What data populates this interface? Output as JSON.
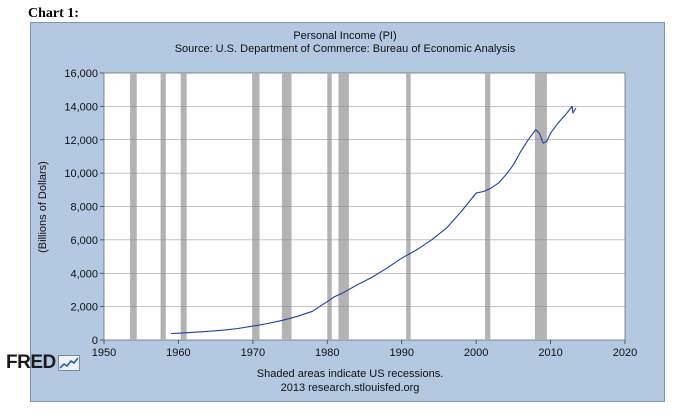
{
  "header": {
    "chart_label": "Chart 1:"
  },
  "footer": {
    "note_line1": "Shaded areas indicate US recessions.",
    "note_line2": "2013 research.stlouisfed.org",
    "logo_text": "FRED"
  },
  "colors": {
    "frame": "#b3c8e1",
    "plot": "#ffffff",
    "line": "#1f3fa3",
    "recession": "#b3b3b3"
  },
  "chart_data": {
    "type": "line",
    "title": "Personal Income (PI)",
    "subtitle": "Source: U.S. Department of Commerce: Bureau of Economic Analysis",
    "xlabel": "",
    "ylabel": "(Billions of Dollars)",
    "xlim": [
      1950,
      2020
    ],
    "ylim": [
      0,
      16000
    ],
    "x_ticks": [
      1950,
      1960,
      1970,
      1980,
      1990,
      2000,
      2010,
      2020
    ],
    "x_tick_labels": [
      "1950",
      "1960",
      "1970",
      "1980",
      "1990",
      "2000",
      "2010",
      "2020"
    ],
    "y_ticks": [
      0,
      2000,
      4000,
      6000,
      8000,
      10000,
      12000,
      14000,
      16000
    ],
    "y_tick_labels": [
      "0",
      "2,000",
      "4,000",
      "6,000",
      "8,000",
      "10,000",
      "12,000",
      "14,000",
      "16,000"
    ],
    "grid": true,
    "recessions": [
      [
        1953.5,
        1954.4
      ],
      [
        1957.6,
        1958.3
      ],
      [
        1960.3,
        1961.1
      ],
      [
        1969.9,
        1970.9
      ],
      [
        1973.9,
        1975.2
      ],
      [
        1980.0,
        1980.6
      ],
      [
        1981.5,
        1982.9
      ],
      [
        1990.6,
        1991.2
      ],
      [
        2001.2,
        2001.9
      ],
      [
        2007.9,
        2009.5
      ]
    ],
    "series": [
      {
        "x": [
          1959,
          1960,
          1962,
          1964,
          1966,
          1968,
          1970,
          1972,
          1974,
          1976,
          1978,
          1980,
          1981,
          1982,
          1984,
          1986,
          1988,
          1990,
          1992,
          1994,
          1996,
          1998,
          2000,
          2001,
          2002,
          2003,
          2004,
          2005,
          2006,
          2007,
          2008,
          2008.5,
          2009,
          2009.5,
          2010,
          2011,
          2012,
          2012.9,
          2013,
          2013.4
        ],
        "values": [
          390,
          410,
          460,
          520,
          590,
          690,
          830,
          990,
          1180,
          1420,
          1720,
          2300,
          2600,
          2800,
          3300,
          3750,
          4300,
          4900,
          5400,
          6000,
          6700,
          7700,
          8800,
          8900,
          9100,
          9400,
          9900,
          10500,
          11300,
          12000,
          12600,
          12400,
          11800,
          11900,
          12400,
          13000,
          13500,
          14000,
          13600,
          13900
        ]
      }
    ]
  }
}
